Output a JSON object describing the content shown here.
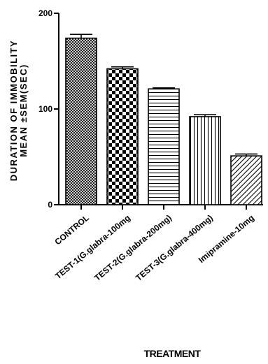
{
  "chart_data": {
    "type": "bar",
    "title": "",
    "xlabel": "TREATMENT",
    "ylabel_line1": "DURATION OF IMMOBILITY",
    "ylabel_line2": "MEAN ±SEM(SEC)",
    "ylim": [
      0,
      200
    ],
    "yticks": [
      "0",
      "100",
      "200"
    ],
    "categories": [
      "CONTROL",
      "TEST-1(G.glabra-100mg",
      "TEST-2(G.glabra-200mg)",
      "TEST-3(G.glabra-400mg)",
      "Imipramine-10mg"
    ],
    "series": [
      {
        "values": [
          174,
          142,
          121,
          92,
          51
        ],
        "sem": [
          4,
          2,
          1,
          2,
          2
        ],
        "patterns": [
          "crosshatch",
          "checkerboard",
          "horizontal-lines",
          "vertical-lines",
          "diagonal-lines"
        ]
      }
    ],
    "grid": false,
    "legend": "none"
  }
}
